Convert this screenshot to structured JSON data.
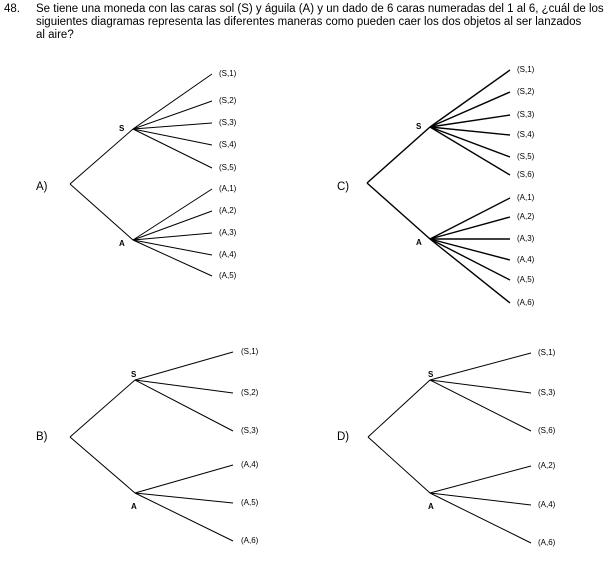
{
  "question": {
    "number": "48.",
    "text_lines": [
      "Se tiene una moneda con las caras sol (S) y águila (A) y un dado de 6 caras numeradas del 1 al 6, ¿cuál de los",
      "siguientes diagramas representa las diferentes maneras como pueden caer los dos objetos al ser lanzados",
      "al aire?"
    ]
  },
  "options": [
    {
      "id": "A",
      "label": "A)",
      "top_node": "S",
      "bottom_node": "A",
      "top_leaves": [
        "(S,1)",
        "(S,2)",
        "(S,3)",
        "(S,4)",
        "(S,5)"
      ],
      "bottom_leaves": [
        "(A,1)",
        "(A,2)",
        "(A,3)",
        "(A,4)",
        "(A,5)"
      ]
    },
    {
      "id": "C",
      "label": "C)",
      "top_node": "S",
      "bottom_node": "A",
      "top_leaves": [
        "(S,1)",
        "(S,2)",
        "(S,3)",
        "(S,4)",
        "(S,5)",
        "(S,6)"
      ],
      "bottom_leaves": [
        "(A,1)",
        "(A,2)",
        "(A,3)",
        "(A,4)",
        "(A,5)",
        "(A,6)"
      ]
    },
    {
      "id": "B",
      "label": "B)",
      "top_node": "S",
      "bottom_node": "A",
      "top_leaves": [
        "(S,1)",
        "(S,2)",
        "(S,3)"
      ],
      "bottom_leaves": [
        "(A,4)",
        "(A,5)",
        "(A,6)"
      ]
    },
    {
      "id": "D",
      "label": "D)",
      "top_node": "S",
      "bottom_node": "A",
      "top_leaves": [
        "(S,1)",
        "(S,3)",
        "(S,6)"
      ],
      "bottom_leaves": [
        "(A,2)",
        "(A,4)",
        "(A,6)"
      ]
    }
  ]
}
